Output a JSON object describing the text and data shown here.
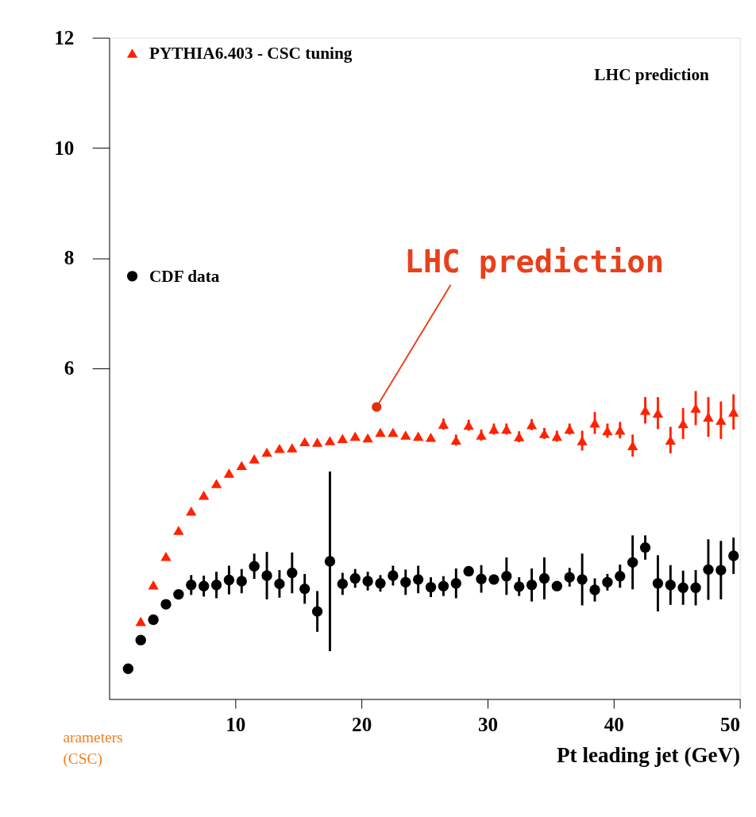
{
  "chart_data": {
    "type": "scatter",
    "xlabel": "Pt leading jet (GeV)",
    "x": [
      1.5,
      2.5,
      3.5,
      4.5,
      5.5,
      6.5,
      7.5,
      8.5,
      9.5,
      10.5,
      11.5,
      12.5,
      13.5,
      14.5,
      15.5,
      16.5,
      17.5,
      18.5,
      19.5,
      20.5,
      21.5,
      22.5,
      23.5,
      24.5,
      25.5,
      26.5,
      27.5,
      28.5,
      29.5,
      30.5,
      31.5,
      32.5,
      33.5,
      34.5,
      35.5,
      36.5,
      37.5,
      38.5,
      39.5,
      40.5,
      41.5,
      42.5,
      43.5,
      44.5,
      45.5,
      46.5,
      47.5,
      48.5,
      49.5
    ],
    "series": [
      {
        "name": "PYTHIA6.403 - CSC tuning",
        "color": "#ff2200",
        "marker": "triangle",
        "values": [
          null,
          1.41,
          2.07,
          2.59,
          3.06,
          3.41,
          3.7,
          3.91,
          4.1,
          4.24,
          4.36,
          4.48,
          4.55,
          4.56,
          4.67,
          4.66,
          4.69,
          4.73,
          4.77,
          4.74,
          4.84,
          4.84,
          4.79,
          4.77,
          4.75,
          4.99,
          4.7,
          4.97,
          4.79,
          4.9,
          4.9,
          4.76,
          4.98,
          4.82,
          4.77,
          4.9,
          4.69,
          5.01,
          4.87,
          4.88,
          4.6,
          5.24,
          5.19,
          4.7,
          5.0,
          5.28,
          5.12,
          5.06,
          5.21
        ],
        "errors": [
          null,
          null,
          null,
          null,
          null,
          null,
          null,
          null,
          null,
          null,
          null,
          null,
          null,
          null,
          null,
          null,
          null,
          null,
          null,
          null,
          null,
          null,
          null,
          null,
          null,
          0.1,
          0.1,
          0.1,
          0.1,
          0.1,
          0.1,
          0.1,
          0.1,
          0.1,
          0.1,
          0.1,
          0.18,
          0.2,
          0.13,
          0.15,
          0.2,
          0.24,
          0.29,
          0.24,
          0.28,
          0.31,
          0.36,
          0.34,
          0.32
        ]
      },
      {
        "name": "CDF data",
        "color": "#000000",
        "marker": "circle",
        "values": [
          0.55,
          1.07,
          1.44,
          1.72,
          1.9,
          2.07,
          2.05,
          2.07,
          2.16,
          2.14,
          2.41,
          2.24,
          2.09,
          2.29,
          2.0,
          1.59,
          2.5,
          2.09,
          2.19,
          2.14,
          2.1,
          2.24,
          2.12,
          2.17,
          2.03,
          2.05,
          2.1,
          2.32,
          2.18,
          2.17,
          2.23,
          2.04,
          2.07,
          2.19,
          2.05,
          2.21,
          2.17,
          1.98,
          2.12,
          2.23,
          2.48,
          2.75,
          2.1,
          2.07,
          2.02,
          2.02,
          2.35,
          2.34,
          2.6
        ],
        "errors": [
          null,
          0.05,
          0.05,
          0.05,
          0.05,
          0.18,
          0.19,
          0.24,
          0.26,
          0.22,
          0.23,
          0.43,
          0.25,
          0.37,
          0.27,
          0.37,
          1.63,
          0.2,
          0.17,
          0.17,
          0.15,
          0.18,
          0.23,
          0.25,
          0.18,
          0.18,
          0.27,
          0.08,
          0.25,
          0.08,
          0.34,
          0.17,
          0.3,
          0.38,
          0.08,
          0.17,
          0.47,
          0.21,
          0.15,
          0.21,
          0.49,
          0.22,
          0.51,
          0.36,
          0.31,
          0.32,
          0.55,
          0.53,
          0.33
        ]
      }
    ],
    "xlim": [
      0,
      50
    ],
    "xticks": [
      10,
      20,
      30,
      40,
      50
    ],
    "ylim": [
      0,
      12
    ],
    "yticks": [
      6,
      8,
      10,
      12
    ],
    "legend": "top left",
    "grid": false,
    "annotations": [
      "LHC prediction",
      {
        "text": "LHC prediction",
        "x": 21.2,
        "y": 5.3
      },
      "arameters",
      "(CSC)"
    ]
  }
}
